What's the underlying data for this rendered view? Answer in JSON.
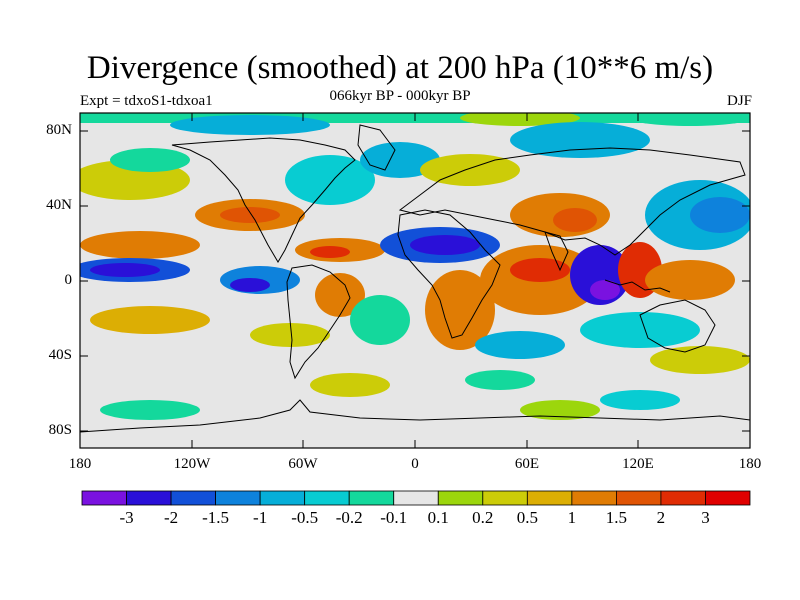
{
  "title": "Divergence (smoothed) at 200 hPa (10**6 m/s)",
  "experiment": "Expt = tdxoS1-tdxoa1",
  "period": "066kyr BP - 000kyr BP",
  "season": "DJF",
  "lat_labels": [
    "80N",
    "40N",
    "0",
    "40S",
    "80S"
  ],
  "lon_labels": [
    "180",
    "120W",
    "60W",
    "0",
    "60E",
    "120E",
    "180"
  ],
  "colorbar": {
    "labels": [
      "-3",
      "-2",
      "-1.5",
      "-1",
      "-0.5",
      "-0.2",
      "-0.1",
      "0.1",
      "0.2",
      "0.5",
      "1",
      "1.5",
      "2",
      "3"
    ],
    "colors": [
      "#7a12e0",
      "#2a10d8",
      "#1250d8",
      "#0e82dc",
      "#06aed8",
      "#08ccd2",
      "#14d89c",
      "#e6e6e6",
      "#9cd60c",
      "#cccc08",
      "#dcae04",
      "#e07c04",
      "#e05404",
      "#e02c04",
      "#e00000"
    ]
  },
  "field_colors": {
    "neutral": "#e6e6e6",
    "ocean_outline": "#000000"
  }
}
